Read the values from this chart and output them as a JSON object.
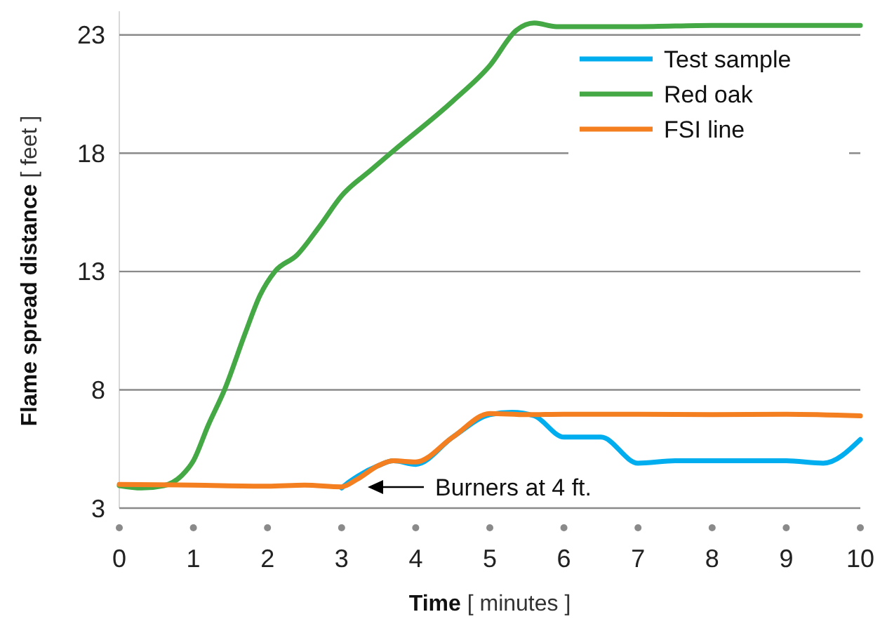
{
  "chart_data": {
    "type": "line",
    "xlabel": "Time [ minutes ]",
    "ylabel": "Flame spread distance [ feet ]",
    "xlim": [
      0,
      10
    ],
    "xticks": [
      0,
      1,
      2,
      3,
      4,
      5,
      6,
      7,
      8,
      9,
      10
    ],
    "ylim": [
      3,
      24
    ],
    "yticks": [
      3,
      8,
      13,
      18,
      23
    ],
    "grid": "y",
    "legend": "top right",
    "marker": "none",
    "line_style": "solid",
    "series": [
      {
        "name": "Test sample",
        "color": "#00aeef",
        "x": [
          3,
          3.1,
          3.5,
          3.7,
          4,
          4.5,
          5,
          5.3,
          5.6,
          6,
          6.5,
          7,
          7.5,
          8,
          9,
          9.5,
          10
        ],
        "values": [
          3.85,
          4.1,
          4.8,
          5.0,
          4.85,
          6.0,
          6.95,
          7.05,
          6.9,
          6.0,
          6.0,
          4.9,
          5.0,
          5.0,
          5.0,
          4.9,
          5.9
        ]
      },
      {
        "name": "Red oak",
        "color": "#44a845",
        "x": [
          0,
          0.3,
          0.6,
          0.85,
          1.0,
          1.2,
          1.42,
          1.7,
          1.9,
          2.1,
          2.4,
          2.7,
          3.0,
          3.4,
          3.7,
          4.5,
          5.0,
          5.36,
          5.6,
          5.9,
          7,
          8,
          10
        ],
        "values": [
          3.95,
          3.85,
          3.95,
          4.4,
          5.0,
          6.5,
          8.0,
          10.4,
          12.0,
          13.0,
          13.7,
          14.9,
          16.2,
          17.3,
          18.1,
          20.2,
          21.7,
          23.2,
          23.5,
          23.35,
          23.35,
          23.4,
          23.4
        ]
      },
      {
        "name": "FSI line",
        "color": "#f47f20",
        "x": [
          0,
          1,
          2,
          2.5,
          3,
          3.2,
          3.5,
          3.7,
          4,
          4.5,
          5,
          5.5,
          6,
          7,
          8,
          9,
          10
        ],
        "values": [
          4.0,
          3.97,
          3.93,
          3.97,
          3.9,
          4.2,
          4.8,
          5.0,
          4.95,
          6.0,
          7.0,
          6.95,
          6.97,
          6.97,
          6.95,
          6.97,
          6.9
        ]
      }
    ],
    "annotations": [
      "Burners at 4 ft."
    ]
  }
}
